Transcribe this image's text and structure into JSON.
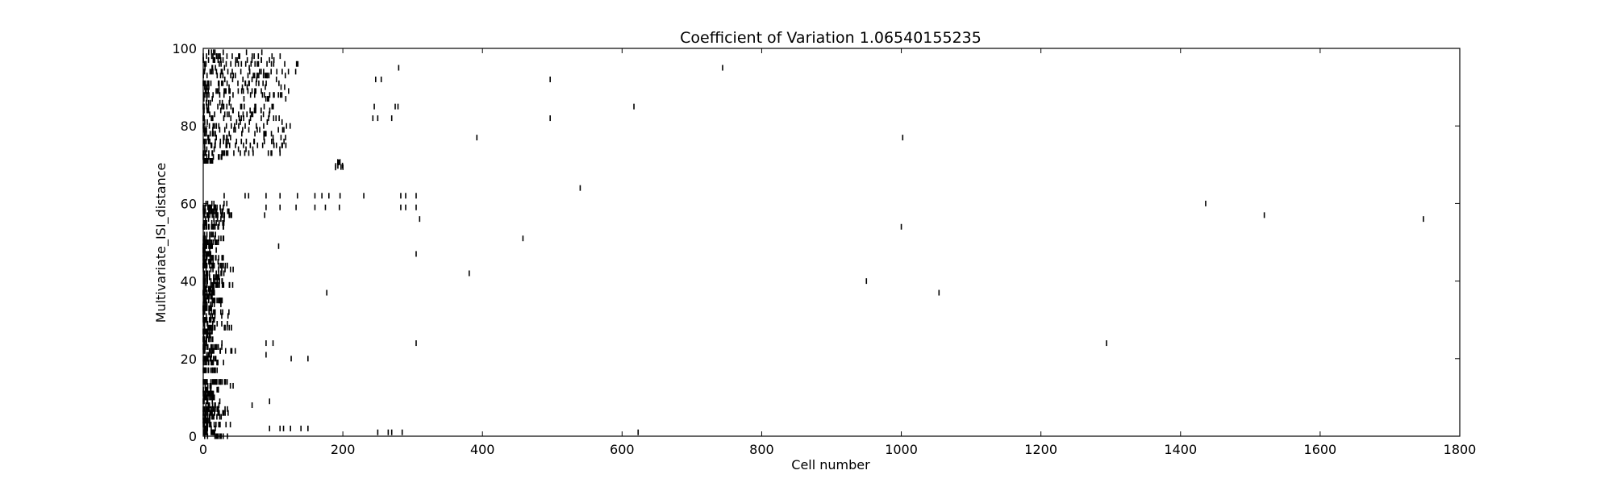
{
  "chart_data": {
    "type": "scatter",
    "marker": "vertical-tick",
    "title": "Coefficient of Variation 1.06540155235",
    "xlabel": "Cell number",
    "ylabel": "Multivariate_ISI_distance",
    "xlim": [
      0,
      1800
    ],
    "ylim": [
      0,
      100
    ],
    "xticks": [
      0,
      200,
      400,
      600,
      800,
      1000,
      1200,
      1400,
      1600,
      1800
    ],
    "yticks": [
      0,
      20,
      40,
      60,
      80,
      100
    ],
    "grid": false,
    "legend": "none",
    "mark_color": "#000000",
    "series": [
      {
        "points": [
          {
            "x": 744,
            "y": 95
          },
          {
            "x": 280,
            "y": 95
          },
          {
            "x": 497,
            "y": 92
          },
          {
            "x": 247,
            "y": 92
          },
          {
            "x": 255,
            "y": 92
          },
          {
            "x": 617,
            "y": 85
          },
          {
            "x": 245,
            "y": 85
          },
          {
            "x": 275,
            "y": 85
          },
          {
            "x": 279,
            "y": 85
          },
          {
            "x": 497,
            "y": 82
          },
          {
            "x": 243,
            "y": 82
          },
          {
            "x": 250,
            "y": 82
          },
          {
            "x": 270,
            "y": 82
          },
          {
            "x": 392,
            "y": 77
          },
          {
            "x": 1002,
            "y": 77
          },
          {
            "x": 540,
            "y": 64
          },
          {
            "x": 1436,
            "y": 60
          },
          {
            "x": 1520,
            "y": 57
          },
          {
            "x": 1748,
            "y": 56
          },
          {
            "x": 310,
            "y": 56
          },
          {
            "x": 1000,
            "y": 54
          },
          {
            "x": 458,
            "y": 51
          },
          {
            "x": 108,
            "y": 49
          },
          {
            "x": 305,
            "y": 47
          },
          {
            "x": 381,
            "y": 42
          },
          {
            "x": 950,
            "y": 40
          },
          {
            "x": 1054,
            "y": 37
          },
          {
            "x": 177,
            "y": 37
          },
          {
            "x": 305,
            "y": 24
          },
          {
            "x": 1294,
            "y": 24
          },
          {
            "x": 623,
            "y": 1
          },
          {
            "x": 250,
            "y": 1
          },
          {
            "x": 265,
            "y": 1
          },
          {
            "x": 270,
            "y": 1
          },
          {
            "x": 285,
            "y": 1
          },
          {
            "x": 230,
            "y": 62
          },
          {
            "x": 283,
            "y": 62
          },
          {
            "x": 290,
            "y": 62
          },
          {
            "x": 305,
            "y": 62
          },
          {
            "x": 196,
            "y": 62
          },
          {
            "x": 160,
            "y": 62
          },
          {
            "x": 170,
            "y": 62
          },
          {
            "x": 180,
            "y": 62
          },
          {
            "x": 283,
            "y": 59
          },
          {
            "x": 290,
            "y": 59
          },
          {
            "x": 305,
            "y": 59
          },
          {
            "x": 195,
            "y": 59
          },
          {
            "x": 160,
            "y": 59
          },
          {
            "x": 175,
            "y": 59
          },
          {
            "x": 90,
            "y": 62
          },
          {
            "x": 110,
            "y": 62
          },
          {
            "x": 135,
            "y": 62
          },
          {
            "x": 60,
            "y": 62
          },
          {
            "x": 65,
            "y": 62
          },
          {
            "x": 30,
            "y": 62
          },
          {
            "x": 90,
            "y": 59
          },
          {
            "x": 110,
            "y": 59
          },
          {
            "x": 133,
            "y": 59
          },
          {
            "x": 88,
            "y": 57
          },
          {
            "x": 90,
            "y": 24
          },
          {
            "x": 100,
            "y": 24
          },
          {
            "x": 90,
            "y": 21
          },
          {
            "x": 126,
            "y": 20
          },
          {
            "x": 150,
            "y": 20
          },
          {
            "x": 95,
            "y": 9
          },
          {
            "x": 70,
            "y": 8
          },
          {
            "x": 95,
            "y": 2
          },
          {
            "x": 110,
            "y": 2
          },
          {
            "x": 115,
            "y": 2
          },
          {
            "x": 125,
            "y": 2
          },
          {
            "x": 140,
            "y": 2
          },
          {
            "x": 150,
            "y": 2
          }
        ]
      }
    ]
  }
}
